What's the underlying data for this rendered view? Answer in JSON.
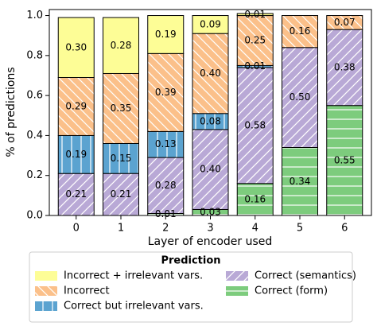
{
  "chart_data": {
    "type": "stacked-bar",
    "xlabel": "Layer of encoder used",
    "ylabel": "% of predictions",
    "categories": [
      "0",
      "1",
      "2",
      "3",
      "4",
      "5",
      "6"
    ],
    "ylim": [
      0,
      1.03
    ],
    "yticks": [
      {
        "value": 0,
        "label": "0.0"
      },
      0.2,
      0.4,
      0.6,
      0.8,
      {
        "value": 1,
        "label": "1.0"
      }
    ],
    "legend_title": "Prediction",
    "legend": "bottom",
    "series": [
      {
        "name": "Incorrect + irrelevant vars.",
        "color": "#fdfd96",
        "hatch": "",
        "values": [
          0.3,
          0.28,
          0.19,
          0.09,
          0.01,
          null,
          null
        ],
        "value_labels": [
          "0.30",
          "0.28",
          "0.19",
          "0.09",
          "0.01",
          null,
          null
        ]
      },
      {
        "name": "Incorrect",
        "color": "#fbc08a",
        "hatch": "\\",
        "values": [
          0.29,
          0.35,
          0.39,
          0.4,
          0.25,
          0.16,
          0.07
        ],
        "value_labels": [
          "0.29",
          "0.35",
          "0.39",
          "0.40",
          "0.25",
          "0.16",
          "0.07"
        ]
      },
      {
        "name": "Correct but irrelevant vars.",
        "color": "#5ba3d0",
        "hatch": "|",
        "values": [
          0.19,
          0.15,
          0.13,
          0.08,
          0.01,
          null,
          null
        ],
        "value_labels": [
          "0.19",
          "0.15",
          "0.13",
          "0.08",
          "0.01",
          null,
          null
        ]
      },
      {
        "name": "Correct (semantics)",
        "color": "#b9a9d6",
        "hatch": "/",
        "values": [
          0.21,
          0.21,
          0.28,
          0.4,
          0.58,
          0.5,
          0.38
        ],
        "value_labels": [
          "0.21",
          "0.21",
          "0.28",
          "0.40",
          "0.58",
          "0.50",
          "0.38"
        ]
      },
      {
        "name": "Correct (form)",
        "color": "#7dcc7d",
        "hatch": "-",
        "values": [
          null,
          null,
          0.01,
          0.03,
          0.16,
          0.34,
          0.55
        ],
        "value_labels": [
          null,
          null,
          "0.01",
          "0.03",
          "0.16",
          "0.34",
          "0.55"
        ]
      }
    ]
  }
}
